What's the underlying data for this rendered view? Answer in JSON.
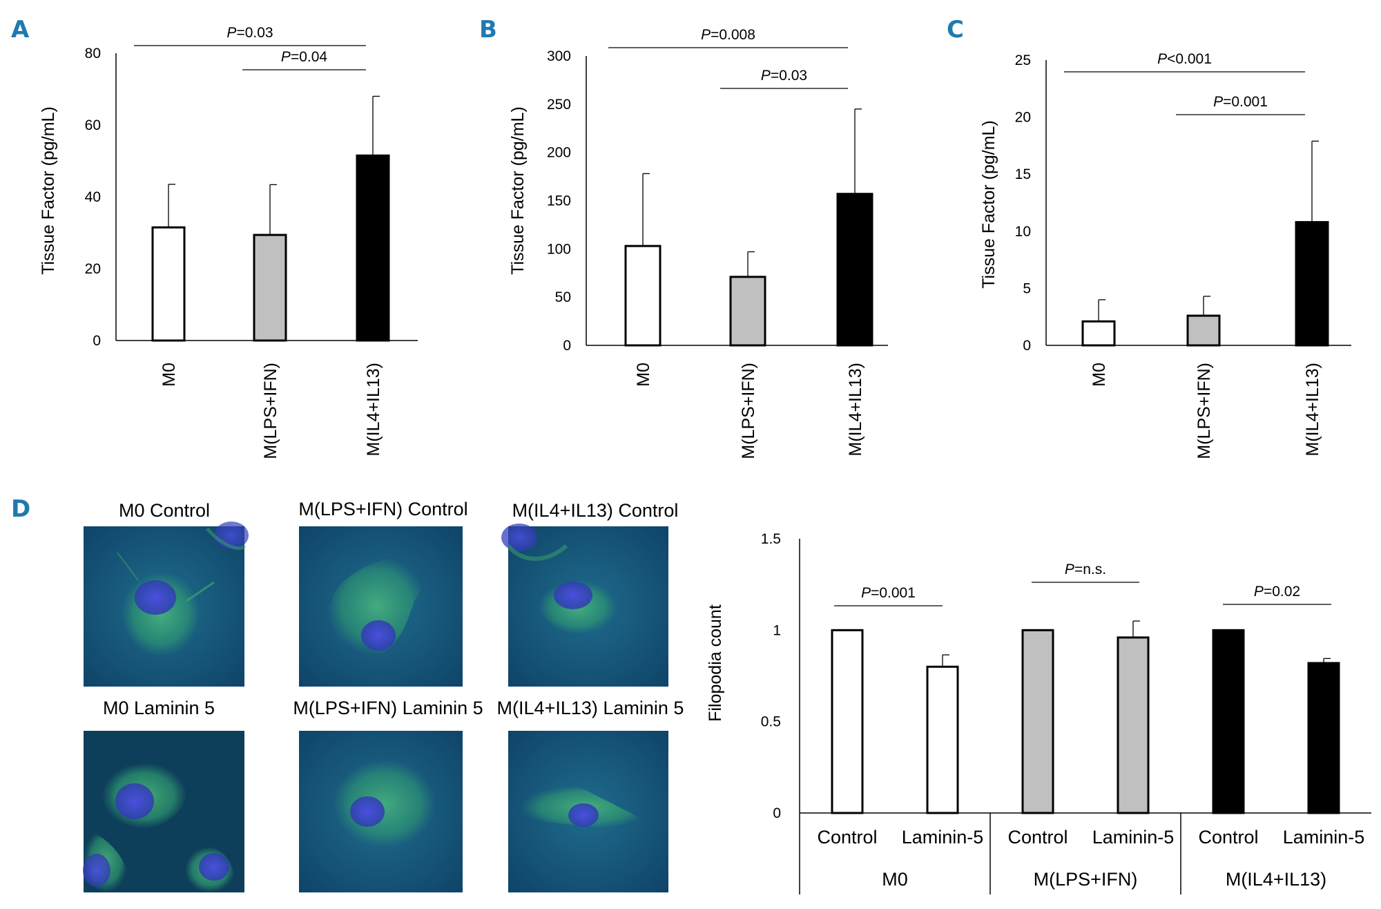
{
  "panels": {
    "A": "A",
    "B": "B",
    "C": "C",
    "D": "D"
  },
  "chart_data": [
    {
      "type": "bar",
      "panel": "A",
      "categories": [
        "M0",
        "M(LPS+IFN)",
        "M(IL4+IL13)"
      ],
      "values": [
        31.5,
        29.4,
        51.5
      ],
      "errors": [
        12,
        14,
        16.5
      ],
      "fills": [
        "#ffffff",
        "#c0c0c0",
        "#000000"
      ],
      "ylabel": "Tissue Factor (pg/mL)",
      "ylim": [
        0,
        80
      ],
      "yticks": [
        0,
        20,
        40,
        60,
        80
      ],
      "ytick_labels": [
        "0",
        "20",
        "40",
        "60",
        "80"
      ],
      "comparisons": [
        {
          "from": 0,
          "to": 2,
          "p": "P",
          "text": "=0.03",
          "level": 0
        },
        {
          "from": 1,
          "to": 2,
          "p": "P",
          "text": "=0.04",
          "level": 1
        }
      ]
    },
    {
      "type": "bar",
      "panel": "B",
      "categories": [
        "M0",
        "M(LPS+IFN)",
        "M(IL4+IL13)"
      ],
      "values": [
        103,
        71,
        157
      ],
      "errors": [
        75,
        26,
        88
      ],
      "fills": [
        "#ffffff",
        "#c0c0c0",
        "#000000"
      ],
      "ylabel": "Tissue Factor (pg/mL)",
      "ylim": [
        0,
        300
      ],
      "yticks": [
        0,
        50,
        100,
        150,
        200,
        250,
        300
      ],
      "ytick_labels": [
        "0",
        "50",
        "100",
        "150",
        "200",
        "250",
        "300"
      ],
      "comparisons": [
        {
          "from": 0,
          "to": 2,
          "p": "P",
          "text": "=0.008",
          "level": 0
        },
        {
          "from": 1,
          "to": 2,
          "p": "P",
          "text": "=0.03",
          "level": 1
        }
      ]
    },
    {
      "type": "bar",
      "panel": "C",
      "categories": [
        "M0",
        "M(LPS+IFN)",
        "M(IL4+IL13)"
      ],
      "values": [
        2.1,
        2.6,
        10.8
      ],
      "errors": [
        1.9,
        1.7,
        7.1
      ],
      "fills": [
        "#ffffff",
        "#c0c0c0",
        "#000000"
      ],
      "ylabel": "Tissue Factor (pg/mL)",
      "ylim": [
        0,
        25
      ],
      "yticks": [
        0,
        5,
        10,
        15,
        20,
        25
      ],
      "ytick_labels": [
        "0",
        "5",
        "10",
        "15",
        "20",
        "25"
      ],
      "comparisons": [
        {
          "from": 0,
          "to": 2,
          "p": "P",
          "text": "<0.001",
          "level": 0
        },
        {
          "from": 1,
          "to": 2,
          "p": "P",
          "text": "=0.001",
          "level": 1
        }
      ]
    },
    {
      "type": "bar",
      "panel": "D",
      "groups": [
        "M0",
        "M(LPS+IFN)",
        "M(IL4+IL13)"
      ],
      "subcategories": [
        "Control",
        "Laminin-5"
      ],
      "values": [
        [
          1.0,
          0.8
        ],
        [
          1.0,
          0.96
        ],
        [
          1.0,
          0.82
        ]
      ],
      "errors": [
        [
          0.0,
          0.065
        ],
        [
          0.0,
          0.09
        ],
        [
          0.0,
          0.025
        ]
      ],
      "fills": [
        "#ffffff",
        "#c0c0c0",
        "#000000"
      ],
      "ylabel": "Filopodia count",
      "ylim": [
        0,
        1.5
      ],
      "yticks": [
        0,
        0.5,
        1,
        1.5
      ],
      "ytick_labels": [
        "0",
        "0.5",
        "1",
        "1.5"
      ],
      "comparisons": [
        {
          "group": 0,
          "p": "P",
          "text": "=0.001"
        },
        {
          "group": 1,
          "p": "P",
          "text": "=n.s."
        },
        {
          "group": 2,
          "p": "P",
          "text": "=0.02"
        }
      ]
    }
  ],
  "micrographs": {
    "m0_control": "M0 Control",
    "lps_control": "M(LPS+IFN) Control",
    "il4_control": "M(IL4+IL13) Control",
    "m0_laminin": "M0 Laminin 5",
    "lps_laminin": "M(LPS+IFN) Laminin 5",
    "il4_laminin": "M(IL4+IL13) Laminin 5"
  },
  "colors": {
    "panel_letter": "#1f7ab0",
    "micrograph_bg": "#17557a",
    "cell_green": "#3aa86a",
    "nucleus_blue": "#3a46c8"
  }
}
